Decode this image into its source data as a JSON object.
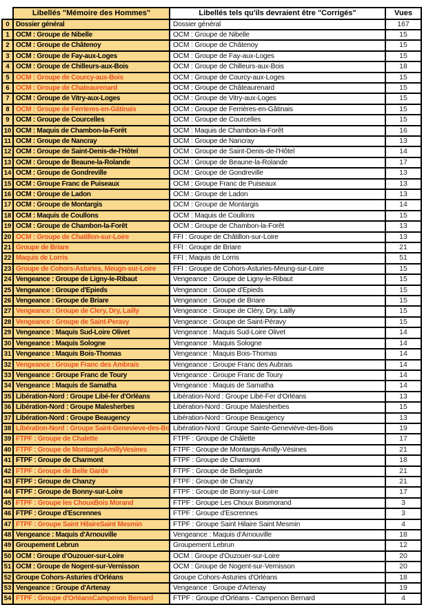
{
  "colors": {
    "highlight_bg": "#f8d98d",
    "error_text": "#e8511f",
    "border": "#000000",
    "normal_text": "#000000"
  },
  "header": {
    "original_label": "Libellés \"Mémoire des Hommes\"",
    "corrected_label": "Libellés tels qu'ils devraient être \"Corrigés\"",
    "views_label": "Vues"
  },
  "rows": [
    {
      "n": "0",
      "original": "Dossier général",
      "red": false,
      "corrected": "Dossier général",
      "vues": "167"
    },
    {
      "n": "1",
      "original": "OCM : Groupe de Nibelle",
      "red": false,
      "corrected": "OCM : Groupe de Nibelle",
      "vues": "15"
    },
    {
      "n": "2",
      "original": "OCM : Groupe de Châtenoy",
      "red": false,
      "corrected": "OCM : Groupe de Châtenoy",
      "vues": "15"
    },
    {
      "n": "3",
      "original": "OCM : Groupe de Fay-aux-Loges",
      "red": false,
      "corrected": "OCM : Groupe de Fay-aux-Loges",
      "vues": "15"
    },
    {
      "n": "4",
      "original": "OCM : Groupe de Chilleurs-aux-Bois",
      "red": false,
      "corrected": "OCM : Groupe de Chilleurs-aux-Bois",
      "vues": "18"
    },
    {
      "n": "5",
      "original": "OCM : Groupe de Courcy-aux-Bois",
      "red": true,
      "corrected": "OCM : Groupe de Courcy-aux-Loges",
      "vues": "15"
    },
    {
      "n": "6",
      "original": "OCM : Groupe de Chateaurenard",
      "red": true,
      "corrected": "OCM : Groupe de Châteaurenard",
      "vues": "15"
    },
    {
      "n": "7",
      "original": "OCM : Groupe de Vitry-aux-Loges",
      "red": false,
      "corrected": "OCM : Groupe de Vitry-aux-Loges",
      "vues": "15"
    },
    {
      "n": "8",
      "original": "OCM : Groupe de Ferrieres-en-Gâtinais",
      "red": true,
      "corrected": "OCM : Groupe de Ferrières-en-Gâtinais",
      "vues": "15"
    },
    {
      "n": "9",
      "original": "OCM : Groupe de Courcelles",
      "red": false,
      "corrected": "OCM : Groupe de Courcelles",
      "vues": "15"
    },
    {
      "n": "10",
      "original": "OCM : Maquis de Chambon-la-Forêt",
      "red": false,
      "corrected": "OCM : Maquis de Chambon-la-Forêt",
      "vues": "16"
    },
    {
      "n": "11",
      "original": "OCM : Groupe de Nancray",
      "red": false,
      "corrected": "OCM : Groupe de Nancray",
      "vues": "13"
    },
    {
      "n": "12",
      "original": "OCM : Groupe de Saint-Denis-de-l'Hôtel",
      "red": false,
      "corrected": "OCM : Groupe de Saint-Denis-de-l'Hôtel",
      "vues": "14"
    },
    {
      "n": "13",
      "original": "OCM : Groupe de Beaune-la-Rolande",
      "red": false,
      "corrected": "OCM : Groupe de Beaune-la-Rolande",
      "vues": "17"
    },
    {
      "n": "14",
      "original": "OCM : Groupe de Gondreville",
      "red": false,
      "corrected": "OCM : Groupe de Gondreville",
      "vues": "13"
    },
    {
      "n": "15",
      "original": "OCM : Groupe Franc de Puiseaux",
      "red": false,
      "corrected": "OCM : Groupe Franc de Puiseaux",
      "vues": "13"
    },
    {
      "n": "16",
      "original": "OCM : Groupe de Ladon",
      "red": false,
      "corrected": "OCM : Groupe de Ladon",
      "vues": "13"
    },
    {
      "n": "17",
      "original": "OCM : Groupe de Montargis",
      "red": false,
      "corrected": "OCM : Groupe de Montargis",
      "vues": "14"
    },
    {
      "n": "18",
      "original": "OCM : Maquis de Coullons",
      "red": false,
      "corrected": "OCM : Maquis de Coullons",
      "vues": "15"
    },
    {
      "n": "19",
      "original": "OCM : Groupe de Chambon-la-Forêt",
      "red": false,
      "corrected": "OCM : Groupe de Chambon-la-Forêt",
      "vues": "13"
    },
    {
      "n": "20",
      "original": "OCM : Groupe de Chatillon-sur-Loire",
      "red": true,
      "corrected": "FFI : Groupe de Châtillon-sur-Loire",
      "vues": "13"
    },
    {
      "n": "21",
      "original": "Groupe de Briare",
      "red": true,
      "corrected": "FFI : Groupe de Briare",
      "vues": "21"
    },
    {
      "n": "22",
      "original": "Maquis de Lorris",
      "red": true,
      "corrected": "FFI : Maquis de Lorris",
      "vues": "51"
    },
    {
      "n": "23",
      "original": "Groupe de Cohors-Asturies, Meugn-sur-Loire",
      "red": true,
      "corrected": "FFI : Groupe de Cohors-Asturies-Meung-sur-Loire",
      "vues": "15"
    },
    {
      "n": "24",
      "original": "Vengeance : Groupe de Ligny-le-Ribaut",
      "red": false,
      "corrected": "Vengeance : Groupe de Ligny-le-Ribaut",
      "vues": "15"
    },
    {
      "n": "25",
      "original": "Vengeance : Groupe d'Epieds",
      "red": false,
      "corrected": "Vengeance : Groupe d'Epieds",
      "vues": "15"
    },
    {
      "n": "26",
      "original": "Vengeance : Groupe de Briare",
      "red": false,
      "corrected": "Vengeance : Groupe de Briare",
      "vues": "15"
    },
    {
      "n": "27",
      "original": "Vengeance : Groupe de Clery, Dry, Lailly",
      "red": true,
      "corrected": "Vengeance : Groupe de Cléry, Dry, Lailly",
      "vues": "15"
    },
    {
      "n": "28",
      "original": "Vengeance : Groupe de Saint-Peravy",
      "red": true,
      "corrected": "Vengeance : Groupe de Saint-Péravy",
      "vues": "15"
    },
    {
      "n": "29",
      "original": "Vengeance : Maquis Sud-Loire Olivet",
      "red": false,
      "corrected": "Vengeance : Maquis Sud-Loire Olivet",
      "vues": "14"
    },
    {
      "n": "30",
      "original": "Vengeance : Maquis Sologne",
      "red": false,
      "corrected": "Vengeance : Maquis Sologne",
      "vues": "14"
    },
    {
      "n": "31",
      "original": "Vengeance : Maquis Bois-Thomas",
      "red": false,
      "corrected": "Vengeance : Maquis Bois-Thomas",
      "vues": "14"
    },
    {
      "n": "32",
      "original": "Vengeance : Groupe Franc des Ambrais",
      "red": true,
      "corrected": "Vengeance : Groupe Franc des Aubrais",
      "vues": "14"
    },
    {
      "n": "33",
      "original": "Vengeance : Groupe Franc de Toury",
      "red": false,
      "corrected": "Vengeance : Groupe Franc de Toury",
      "vues": "14"
    },
    {
      "n": "34",
      "original": "Vengeance : Maquis de Samatha",
      "red": false,
      "corrected": "Vengeance : Maquis de Samatha",
      "vues": "14"
    },
    {
      "n": "35",
      "original": "Libération-Nord : Groupe Libé-fer d'Orléans",
      "red": false,
      "corrected": "Libération-Nord : Groupe Libé-Fer d'Orléans",
      "vues": "13"
    },
    {
      "n": "36",
      "original": "Libération-Nord : Groupe Malesherbes",
      "red": false,
      "corrected": "Libération-Nord : Groupe Malesherbes",
      "vues": "15"
    },
    {
      "n": "37",
      "original": "Libération-Nord : Groupe Beaugency",
      "red": false,
      "corrected": "Libération-Nord : Groupe Beaugency",
      "vues": "13"
    },
    {
      "n": "38",
      "original": "Libération-Nord : Groupe Saint-Genevieve-des-Bois",
      "red": true,
      "corrected": "Libération-Nord : Groupe Sainte-Geneviève-des-Bois",
      "vues": "19"
    },
    {
      "n": "39",
      "original": "FTPF : Groupe de Chalette",
      "red": true,
      "corrected": "FTPF : Groupe de Châlette",
      "vues": "17"
    },
    {
      "n": "40",
      "original": "FTPF : Groupe de MontargisAmillyVesines",
      "red": true,
      "corrected": "FTPF : Groupe de Montargis-Amilly-Vésines",
      "vues": "21"
    },
    {
      "n": "41",
      "original": "FTPF : Groupe de Charmont",
      "red": false,
      "corrected": "FTPF : Groupe de Charmont",
      "vues": "18"
    },
    {
      "n": "42",
      "original": "FTPF : Groupe de Belle Garde",
      "red": true,
      "corrected": "FTPF : Groupe de Bellegarde",
      "vues": "21"
    },
    {
      "n": "43",
      "original": "FTPF : Groupe de Chanzy",
      "red": false,
      "corrected": "FTPF : Groupe de Chanzy",
      "vues": "21"
    },
    {
      "n": "44",
      "original": "FTPF : Groupe de Bonny-sur-Loire",
      "red": false,
      "corrected": "FTPF : Groupe de Bonny-sur-Loire",
      "vues": "17"
    },
    {
      "n": "45",
      "original": "FTPF : Groupe les ChouxBois Morand",
      "red": true,
      "corrected": "FTPF : Groupe Les Choux Boismorand",
      "vues": "3"
    },
    {
      "n": "46",
      "original": "FTPF : Groupe d'Escrennes",
      "red": false,
      "corrected": "FTPF : Groupe d'Escrennes",
      "vues": "3"
    },
    {
      "n": "47",
      "original": "FTPF : Groupe Saint HilaireSaint Mesmin",
      "red": true,
      "corrected": "FTPF : Groupe Saint Hilaire Saint Mesmin",
      "vues": "4"
    },
    {
      "n": "48",
      "original": "Vengeance : Maquis d'Arnouville",
      "red": false,
      "corrected": "Vengeance : Maquis d'Arnouville",
      "vues": "18"
    },
    {
      "n": "49",
      "original": "Groupement Lebrun",
      "red": false,
      "corrected": "Groupement Lebrun",
      "vues": "12"
    },
    {
      "n": "50",
      "original": "OCM : Groupe d'Ouzouer-sur-Loire",
      "red": false,
      "corrected": "OCM : Groupe d'Ouzouer-sur-Loire",
      "vues": "20"
    },
    {
      "n": "51",
      "original": "OCM : Groupe de Nogent-sur-Vernisson",
      "red": false,
      "corrected": "OCM : Groupe de Nogent-sur-Vernisson",
      "vues": "20"
    },
    {
      "n": "52",
      "original": "Groupe Cohors-Asturies d'Orléans",
      "red": false,
      "corrected": "Groupe Cohors-Asturies d'Orléans",
      "vues": "18"
    },
    {
      "n": "53",
      "original": "Vengeance : Groupe d'Artenay",
      "red": false,
      "corrected": "Vengeance : Groupe d'Artenay",
      "vues": "19"
    },
    {
      "n": "54",
      "original": "FTPF : Groupe d'OrléansCampenon Bernard",
      "red": true,
      "corrected": "FTPF : Groupe d'Orléans - Campenon Bernard",
      "vues": "4"
    }
  ]
}
